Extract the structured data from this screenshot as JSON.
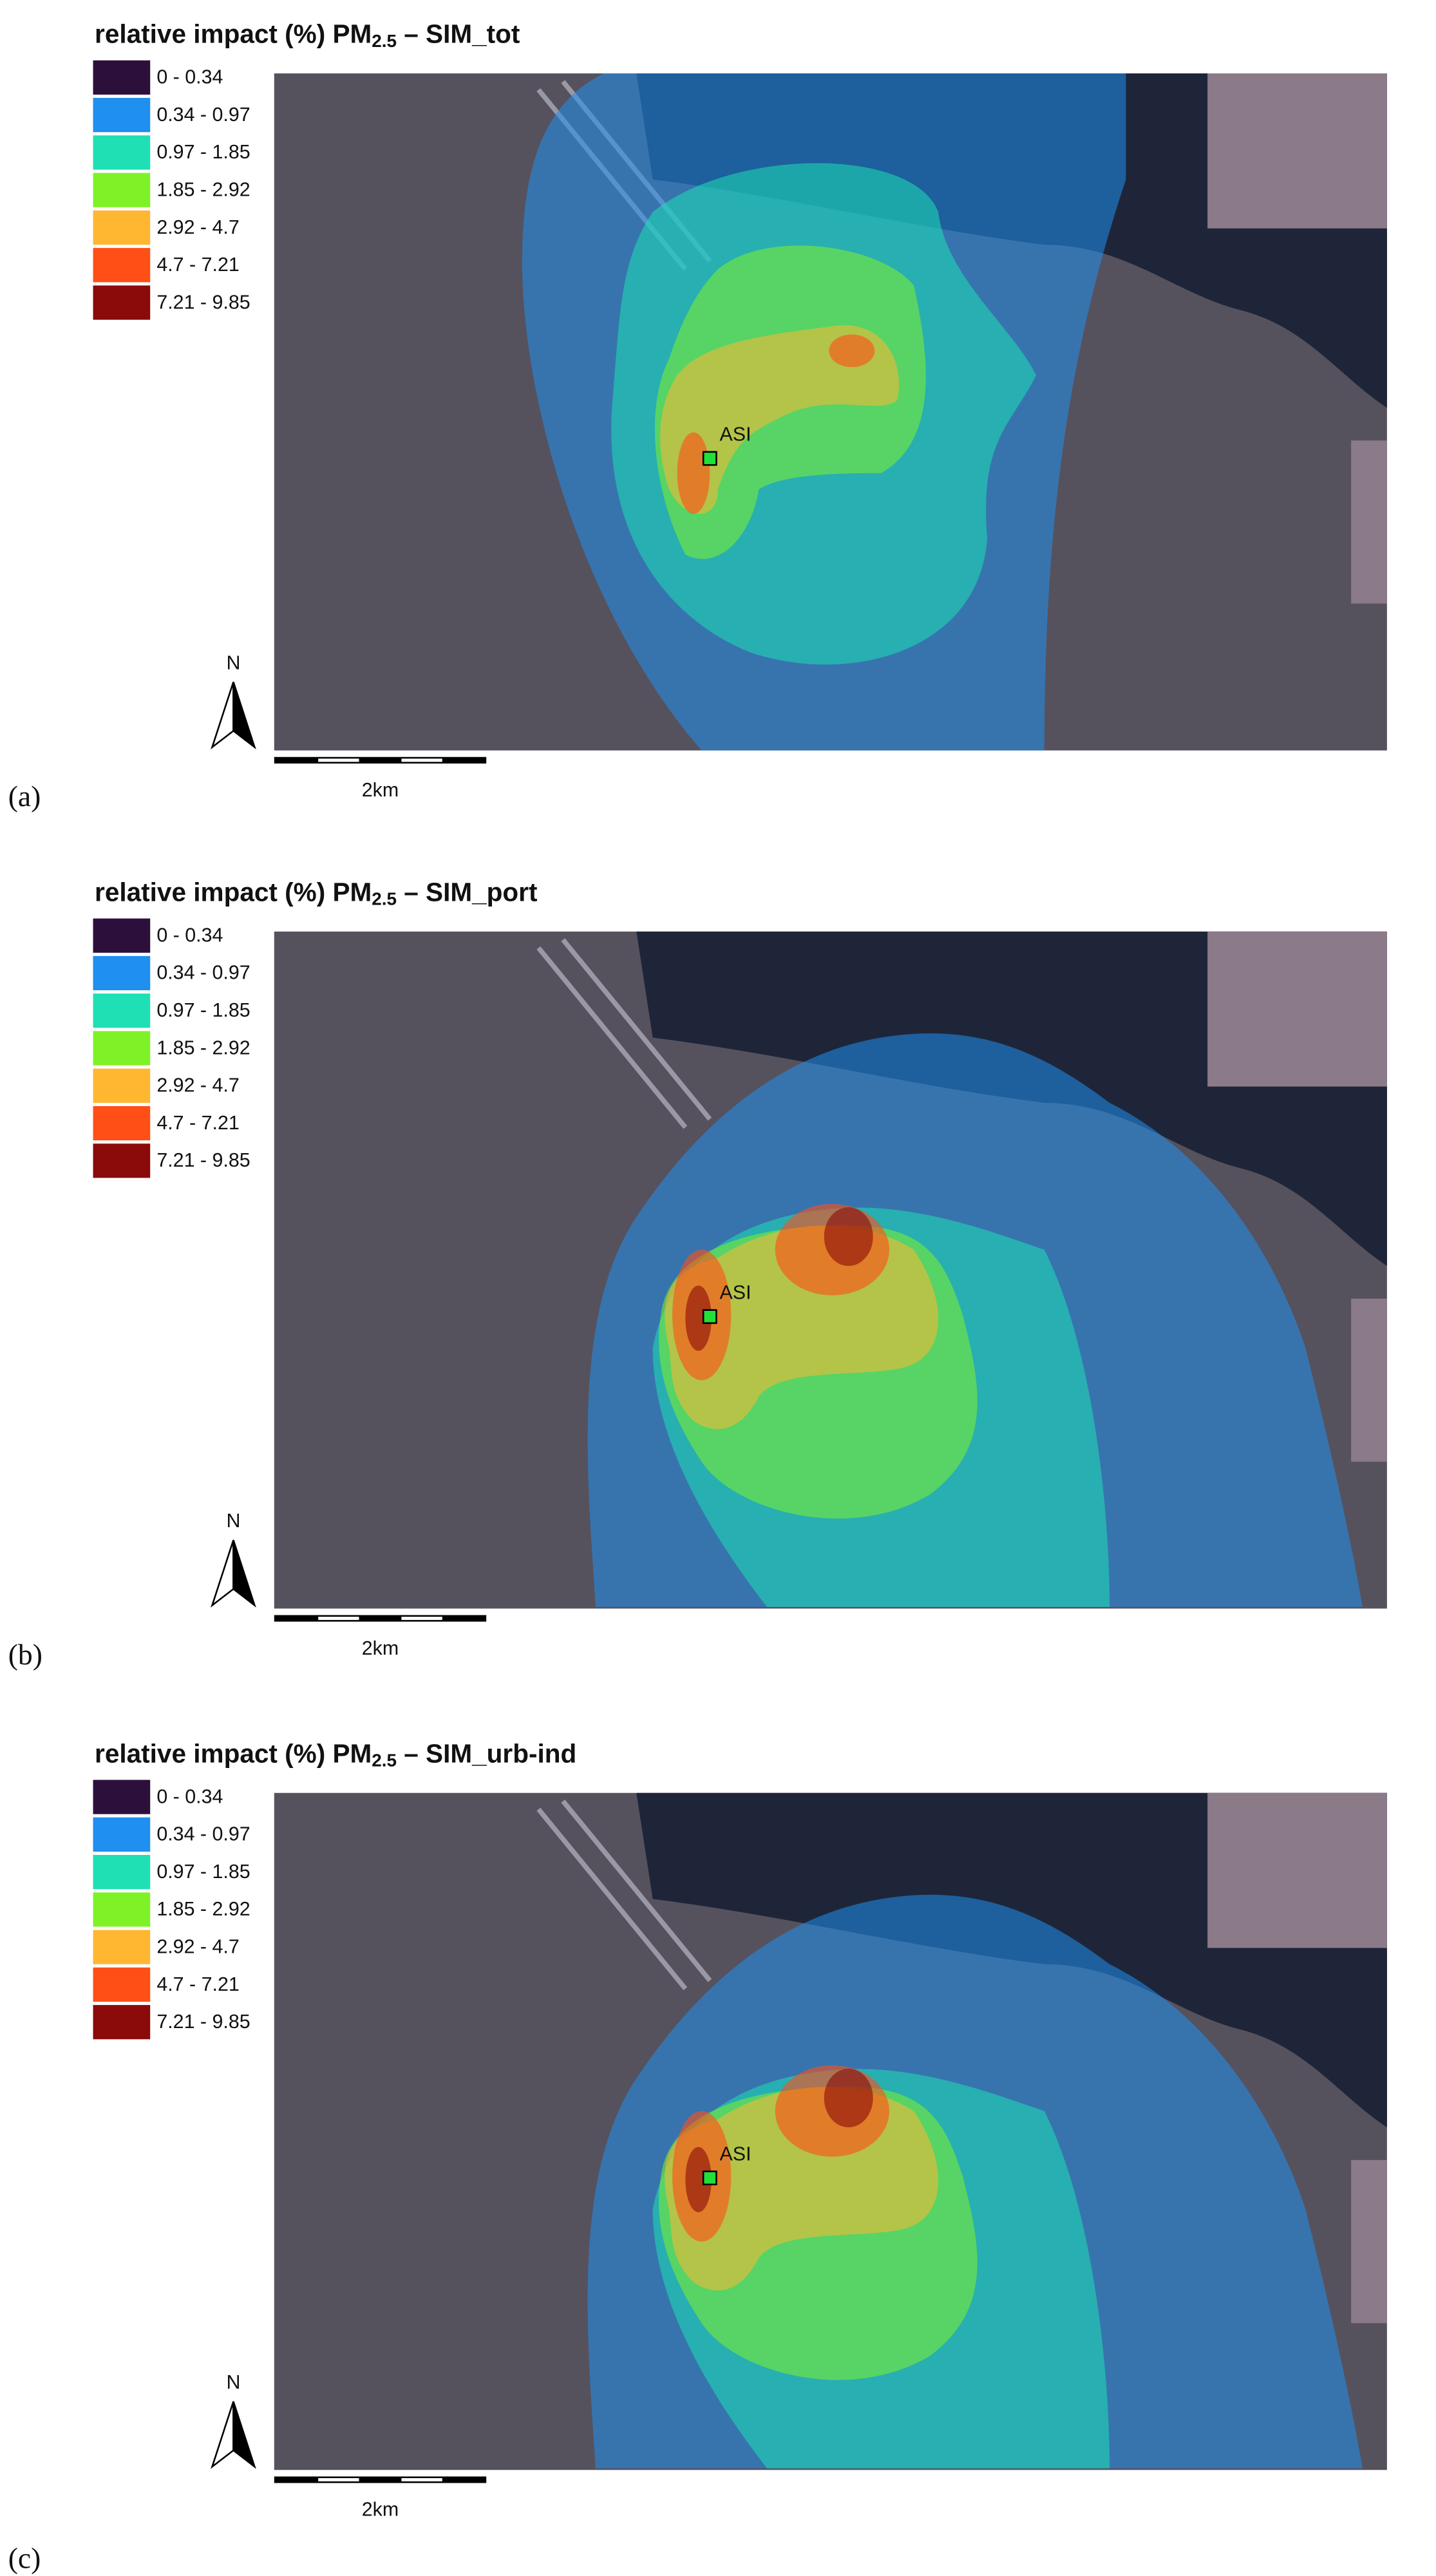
{
  "panels": [
    {
      "title": {
        "prefix": "relative impact (%) PM",
        "sub": "2.5",
        "suffix": "– SIM_tot"
      },
      "legend": [
        {
          "label": "0 - 0.34",
          "color": "#2d0f3c"
        },
        {
          "label": "0.34 - 0.97",
          "color": "#1f8ff0"
        },
        {
          "label": "0.97 - 1.85",
          "color": "#1ee0b4"
        },
        {
          "label": "1.85 - 2.92",
          "color": "#7ef227"
        },
        {
          "label": "2.92 - 4.7",
          "color": "#ffb732"
        },
        {
          "label": "4.7 - 7.21",
          "color": "#ff4e16"
        },
        {
          "label": "7.21 - 9.85",
          "color": "#8b0a0a"
        }
      ],
      "site": "ASI",
      "north": "N",
      "scale": "2km",
      "label": "(a)"
    },
    {
      "title": {
        "prefix": "relative impact (%) PM",
        "sub": "2.5",
        "suffix": "– SIM_port"
      },
      "legend": [
        {
          "label": "0 - 0.34",
          "color": "#2d0f3c"
        },
        {
          "label": "0.34 - 0.97",
          "color": "#1f8ff0"
        },
        {
          "label": "0.97 - 1.85",
          "color": "#1ee0b4"
        },
        {
          "label": "1.85 - 2.92",
          "color": "#7ef227"
        },
        {
          "label": "2.92 - 4.7",
          "color": "#ffb732"
        },
        {
          "label": "4.7 - 7.21",
          "color": "#ff4e16"
        },
        {
          "label": "7.21 - 9.85",
          "color": "#8b0a0a"
        }
      ],
      "site": "ASI",
      "north": "N",
      "scale": "2km",
      "label": "(b)"
    },
    {
      "title": {
        "prefix": "relative impact (%) PM",
        "sub": "2.5",
        "suffix": "– SIM_urb-ind"
      },
      "legend": [
        {
          "label": "0 - 0.34",
          "color": "#2d0f3c"
        },
        {
          "label": "0.34 - 0.97",
          "color": "#1f8ff0"
        },
        {
          "label": "0.97 - 1.85",
          "color": "#1ee0b4"
        },
        {
          "label": "1.85 - 2.92",
          "color": "#7ef227"
        },
        {
          "label": "2.92 - 4.7",
          "color": "#ffb732"
        },
        {
          "label": "4.7 - 7.21",
          "color": "#ff4e16"
        },
        {
          "label": "7.21 - 9.85",
          "color": "#8b0a0a"
        }
      ],
      "site": "ASI",
      "north": "N",
      "scale": "2km",
      "label": "(c)"
    }
  ]
}
